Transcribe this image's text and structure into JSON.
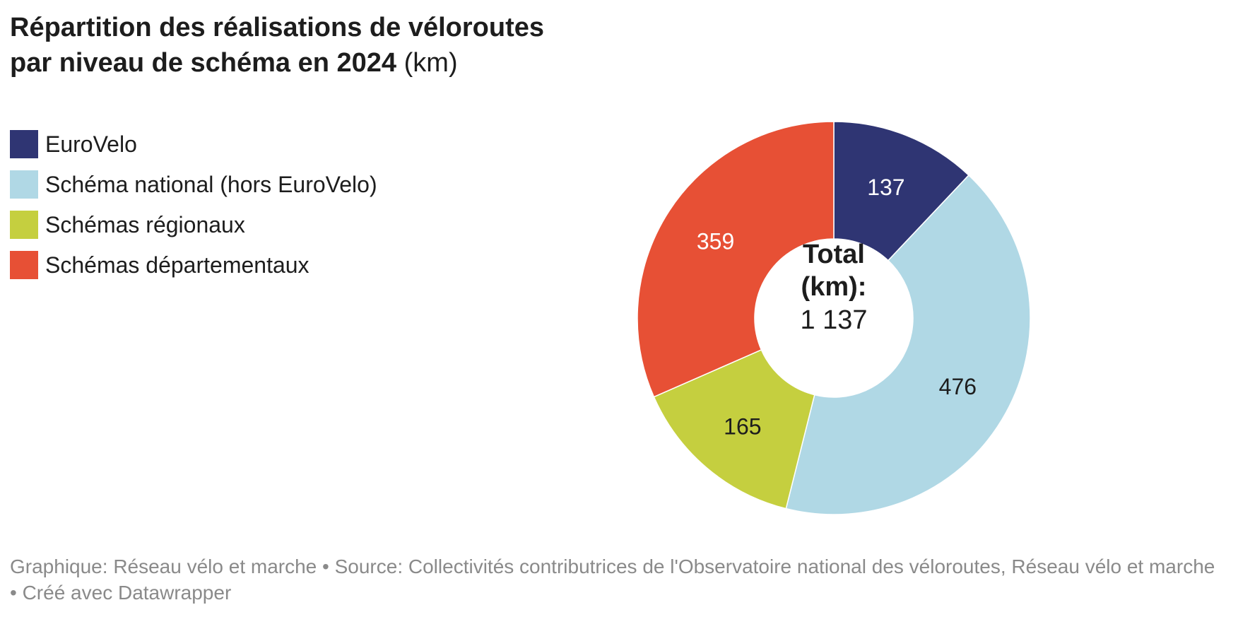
{
  "header": {
    "title_bold": "Répartition des réalisations de véloroutes par niveau de schéma en 2024",
    "title_unit": "(km)"
  },
  "chart_data": {
    "type": "pie",
    "variant": "donut",
    "categories": [
      "EuroVelo",
      "Schéma national (hors EuroVelo)",
      "Schémas régionaux",
      "Schémas départementaux"
    ],
    "values": [
      137,
      476,
      165,
      359
    ],
    "value_labels": [
      "137",
      "476",
      "165",
      "359"
    ],
    "colors": [
      "#2f3573",
      "#b0d8e5",
      "#c5cf3f",
      "#e75035"
    ],
    "label_colors": [
      "#ffffff",
      "#1d1d1d",
      "#1d1d1d",
      "#ffffff"
    ],
    "center": {
      "line1": "Total",
      "line2": "(km):",
      "value": "1 137"
    },
    "legend_position": "top-left"
  },
  "footer": {
    "text": "Graphique: Réseau vélo et marche • Source: Collectivités contributrices de l'Observatoire national des véloroutes, Réseau vélo et marche • Créé avec Datawrapper"
  }
}
